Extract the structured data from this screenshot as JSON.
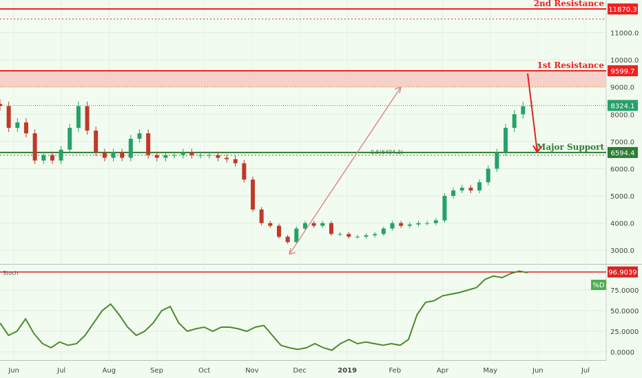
{
  "chart_data": [
    {
      "type": "candlestick",
      "ylim": [
        2500,
        12200
      ],
      "y_ticks": [
        "3000.0",
        "4000.0",
        "5000.0",
        "6000.0",
        "7000.0",
        "8000.0",
        "9000.0",
        "10000.0",
        "11000.0"
      ],
      "x_ticks": [
        "Jun",
        "Jul",
        "Aug",
        "Sep",
        "Oct",
        "Nov",
        "Dec",
        "2019",
        "Feb",
        "Apr",
        "May",
        "Jun",
        "Jul"
      ],
      "closes": [
        8300,
        7500,
        7700,
        7300,
        6300,
        6500,
        6300,
        6700,
        7500,
        8300,
        7400,
        6600,
        6400,
        6600,
        6400,
        7100,
        7300,
        6500,
        6400,
        6500,
        6500,
        6600,
        6500,
        6500,
        6500,
        6400,
        6350,
        6200,
        5600,
        4500,
        4000,
        3900,
        3500,
        3300,
        3800,
        4000,
        3900,
        4000,
        3600,
        3600,
        3500,
        3500,
        3550,
        3600,
        3800,
        4000,
        3900,
        3950,
        4000,
        4000,
        4100,
        5000,
        5200,
        5300,
        5200,
        5500,
        6000,
        6600,
        7500,
        8000,
        8300,
        8324
      ],
      "levels": [
        {
          "label": "2nd Resistance",
          "value": 11870.3,
          "tag": "11870.3",
          "color": "#ee2222"
        },
        {
          "label": "1st Resistance",
          "value": 9599.7,
          "tag": "9599.7",
          "color": "#ee2222"
        },
        {
          "label": "Major Support",
          "value": 6594.4,
          "tag": "6594.4",
          "color": "#2e7d32"
        }
      ],
      "current_price_tag": "8324.1",
      "fib_label": "0.5(6494.3)"
    },
    {
      "type": "line",
      "name": "Stoch",
      "legend_tag": "%D",
      "level_tag": "96.9039",
      "ylim": [
        -10,
        105
      ],
      "y_ticks": [
        "0.0000",
        "25.0000",
        "50.0000",
        "75.0000"
      ],
      "values": [
        35,
        20,
        25,
        40,
        22,
        10,
        5,
        12,
        8,
        10,
        20,
        35,
        50,
        58,
        45,
        30,
        20,
        25,
        35,
        50,
        55,
        35,
        25,
        28,
        30,
        25,
        30,
        30,
        28,
        25,
        30,
        32,
        20,
        8,
        5,
        3,
        5,
        10,
        5,
        2,
        10,
        15,
        10,
        12,
        10,
        8,
        10,
        8,
        15,
        45,
        60,
        62,
        68,
        70,
        72,
        75,
        78,
        88,
        92,
        90,
        95,
        98,
        96
      ]
    }
  ]
}
